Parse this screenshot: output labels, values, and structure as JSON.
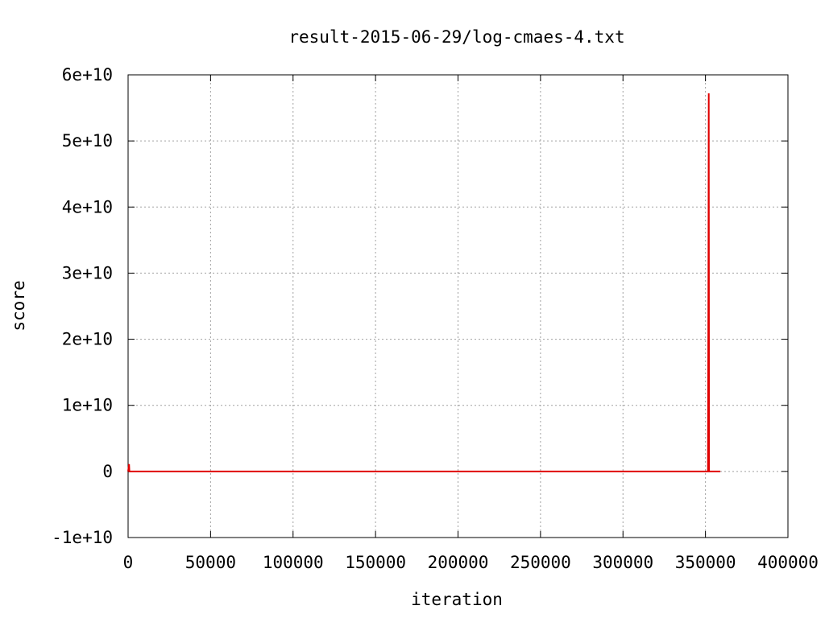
{
  "chart_data": {
    "type": "line",
    "title": "result-2015-06-29/log-cmaes-4.txt",
    "xlabel": "iteration",
    "ylabel": "score",
    "xlim": [
      0,
      400000
    ],
    "ylim": [
      -10000000000,
      60000000000
    ],
    "x_ticks": [
      0,
      50000,
      100000,
      150000,
      200000,
      250000,
      300000,
      350000,
      400000
    ],
    "x_tick_labels": [
      "0",
      "50000",
      "100000",
      "150000",
      "200000",
      "250000",
      "300000",
      "350000",
      "400000"
    ],
    "y_ticks": [
      -10000000000,
      0,
      10000000000,
      20000000000,
      30000000000,
      40000000000,
      50000000000,
      60000000000
    ],
    "y_tick_labels": [
      "-1e+10",
      "0",
      "1e+10",
      "2e+10",
      "3e+10",
      "4e+10",
      "5e+10",
      "6e+10"
    ],
    "grid": true,
    "series": [
      {
        "color": "#e00000",
        "x": [
          0,
          600,
          800,
          1200,
          100000,
          200000,
          300000,
          351500,
          351800,
          352000,
          352200,
          352500,
          359000
        ],
        "y": [
          0,
          1100000000,
          0,
          0,
          0,
          0,
          0,
          0,
          29000000000,
          57200000000,
          0,
          0,
          0
        ]
      }
    ]
  }
}
